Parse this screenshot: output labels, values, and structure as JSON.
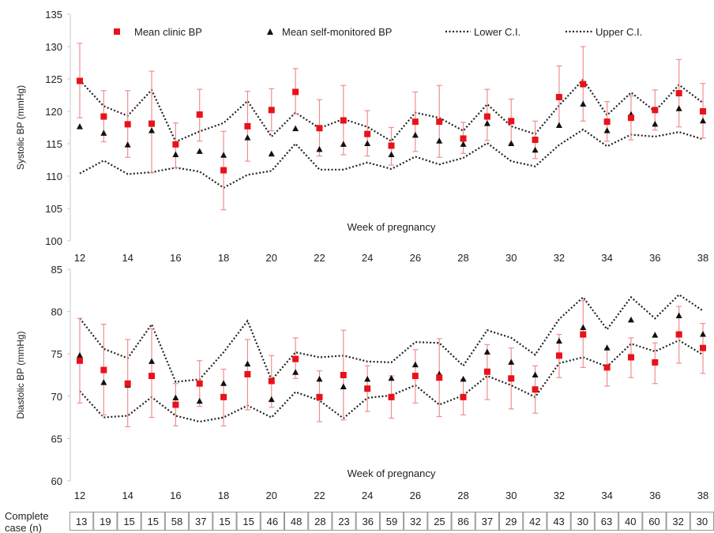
{
  "legend": {
    "clinic": "Mean clinic BP",
    "self": "Mean self-monitored BP",
    "lower": "Lower C.I.",
    "upper": "Upper C.I."
  },
  "table": {
    "label_line1": "Complete",
    "label_line2": "case (n)",
    "counts": [
      "13",
      "19",
      "15",
      "15",
      "58",
      "37",
      "15",
      "15",
      "46",
      "48",
      "28",
      "23",
      "36",
      "59",
      "32",
      "25",
      "86",
      "37",
      "29",
      "42",
      "43",
      "30",
      "63",
      "40",
      "60",
      "32",
      "30"
    ]
  },
  "colors": {
    "clinic": "#e8121b",
    "error_bar": "#ef8f8f",
    "self": "#111111",
    "ci": "#222222"
  },
  "chart_data": [
    {
      "type": "scatter",
      "xlabel": "Week of pregnancy",
      "ylabel": "Systolic BP (mmHg)",
      "ylim": [
        100,
        135
      ],
      "yticks": [
        100,
        105,
        110,
        115,
        120,
        125,
        130,
        135
      ],
      "xlim": [
        12,
        38
      ],
      "xticks": [
        12,
        14,
        16,
        18,
        20,
        22,
        24,
        26,
        28,
        30,
        32,
        34,
        36,
        38
      ],
      "x": [
        12,
        13,
        14,
        15,
        16,
        17,
        18,
        19,
        20,
        21,
        22,
        23,
        24,
        25,
        26,
        27,
        28,
        29,
        30,
        31,
        32,
        33,
        34,
        35,
        36,
        37,
        38
      ],
      "series": [
        {
          "name": "Mean clinic BP",
          "values": [
            124.7,
            119.2,
            118.0,
            118.1,
            114.9,
            119.5,
            110.9,
            117.7,
            120.2,
            123.0,
            117.4,
            118.6,
            116.5,
            114.7,
            118.4,
            118.4,
            115.8,
            119.2,
            118.5,
            115.6,
            122.2,
            124.2,
            118.4,
            119.0,
            120.2,
            122.8,
            120.0
          ],
          "err_low": [
            119.0,
            115.3,
            112.9,
            110.5,
            111.3,
            115.4,
            104.8,
            112.3,
            117.0,
            119.6,
            113.1,
            113.3,
            113.1,
            111.7,
            113.8,
            112.9,
            113.5,
            115.5,
            115.0,
            112.7,
            117.5,
            118.5,
            115.4,
            115.6,
            117.1,
            117.6,
            115.9
          ],
          "err_high": [
            130.5,
            123.2,
            123.2,
            126.2,
            118.2,
            123.4,
            116.9,
            123.1,
            123.5,
            126.6,
            121.8,
            124.0,
            120.1,
            117.5,
            123.0,
            124.0,
            118.3,
            123.4,
            121.9,
            118.5,
            127.0,
            130.0,
            121.5,
            122.4,
            123.3,
            128.0,
            124.3
          ]
        },
        {
          "name": "Mean self-monitored BP",
          "values": [
            117.6,
            116.6,
            114.8,
            117.0,
            113.3,
            113.8,
            113.2,
            115.9,
            113.4,
            117.3,
            114.1,
            114.9,
            115.0,
            113.3,
            116.3,
            115.4,
            114.9,
            118.1,
            115.0,
            114.0,
            117.8,
            121.1,
            117.0,
            119.5,
            118.0,
            120.4,
            118.5
          ]
        },
        {
          "name": "Lower C.I.",
          "values": [
            110.4,
            112.4,
            110.3,
            110.6,
            111.3,
            110.7,
            108.2,
            110.2,
            110.8,
            115.0,
            111.0,
            111.0,
            112.1,
            111.1,
            113.0,
            111.8,
            112.8,
            115.1,
            112.3,
            111.5,
            114.8,
            117.2,
            114.6,
            116.4,
            116.1,
            116.8,
            115.7
          ]
        },
        {
          "name": "Upper C.I.",
          "values": [
            124.8,
            120.8,
            119.3,
            123.3,
            115.3,
            116.9,
            118.2,
            121.6,
            116.1,
            119.8,
            117.4,
            118.8,
            117.6,
            115.4,
            119.8,
            119.0,
            117.0,
            121.1,
            117.7,
            116.5,
            120.9,
            124.9,
            119.4,
            122.9,
            120.0,
            124.1,
            121.3
          ]
        }
      ]
    },
    {
      "type": "scatter",
      "xlabel": "Week of pregnancy",
      "ylabel": "Diastolic BP (mmHg)",
      "ylim": [
        60,
        85
      ],
      "yticks": [
        60,
        65,
        70,
        75,
        80,
        85
      ],
      "xlim": [
        12,
        38
      ],
      "xticks": [
        12,
        14,
        16,
        18,
        20,
        22,
        24,
        26,
        28,
        30,
        32,
        34,
        36,
        38
      ],
      "x": [
        12,
        13,
        14,
        15,
        16,
        17,
        18,
        19,
        20,
        21,
        22,
        23,
        24,
        25,
        26,
        27,
        28,
        29,
        30,
        31,
        32,
        33,
        34,
        35,
        36,
        37,
        38
      ],
      "series": [
        {
          "name": "Mean clinic BP",
          "values": [
            74.2,
            73.1,
            71.5,
            72.4,
            69.0,
            71.5,
            69.9,
            72.6,
            71.8,
            74.4,
            69.9,
            72.5,
            70.9,
            69.9,
            72.4,
            72.2,
            69.9,
            72.9,
            72.1,
            70.8,
            74.8,
            77.3,
            73.4,
            74.6,
            74.0,
            77.3,
            75.7
          ],
          "err_low": [
            69.2,
            67.8,
            66.4,
            67.5,
            66.5,
            68.8,
            66.5,
            68.4,
            68.7,
            72.1,
            67.0,
            67.2,
            68.2,
            67.4,
            69.2,
            67.6,
            67.8,
            69.6,
            68.5,
            68.0,
            72.2,
            73.4,
            71.2,
            72.2,
            71.5,
            73.9,
            72.7
          ],
          "err_high": [
            79.2,
            78.5,
            76.7,
            78.0,
            71.5,
            74.2,
            73.2,
            76.7,
            74.8,
            76.9,
            73.0,
            77.8,
            73.6,
            72.4,
            75.5,
            76.8,
            72.0,
            76.1,
            75.7,
            73.6,
            77.3,
            81.3,
            75.6,
            76.9,
            76.3,
            80.6,
            78.6
          ]
        },
        {
          "name": "Mean self-monitored BP",
          "values": [
            74.8,
            71.6,
            71.3,
            74.1,
            69.8,
            69.4,
            71.5,
            73.8,
            69.6,
            72.8,
            72.0,
            71.1,
            72.0,
            72.1,
            73.7,
            72.6,
            72.0,
            75.2,
            74.0,
            72.5,
            76.5,
            78.1,
            75.7,
            79.0,
            77.2,
            79.5,
            77.3
          ]
        },
        {
          "name": "Lower C.I.",
          "values": [
            70.6,
            67.5,
            67.7,
            69.9,
            67.7,
            67.0,
            67.5,
            68.9,
            67.5,
            70.5,
            69.5,
            67.4,
            69.8,
            70.1,
            71.3,
            69.0,
            70.1,
            72.4,
            71.3,
            69.9,
            73.9,
            74.6,
            73.5,
            76.2,
            75.3,
            76.6,
            74.9
          ]
        },
        {
          "name": "Upper C.I.",
          "values": [
            79.2,
            75.6,
            74.5,
            78.5,
            71.7,
            72.0,
            75.2,
            78.9,
            71.9,
            75.2,
            74.6,
            74.8,
            74.1,
            74.0,
            76.4,
            76.3,
            73.6,
            77.8,
            76.9,
            74.9,
            79.1,
            81.7,
            77.9,
            81.7,
            79.2,
            82.0,
            80.1
          ]
        }
      ]
    }
  ]
}
